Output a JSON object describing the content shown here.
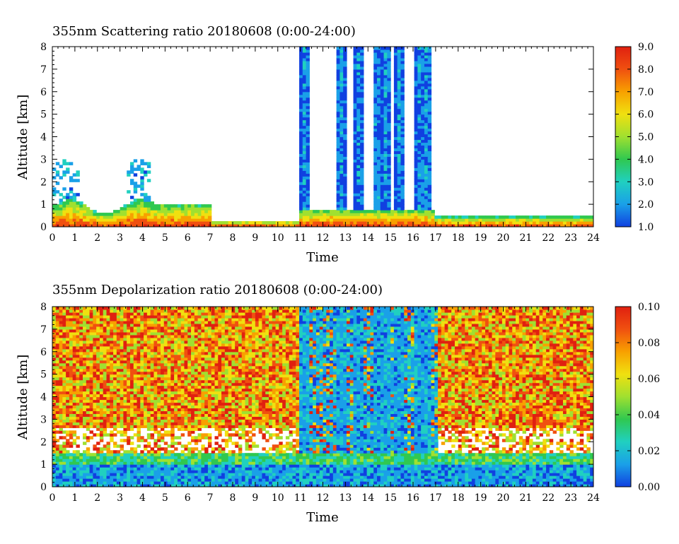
{
  "chart_data": [
    {
      "type": "heatmap",
      "title": "355nm Scattering ratio  20180608 (0:00-24:00)",
      "xlabel": "Time",
      "ylabel": "Altitude [km]",
      "x_ticks": [
        "0",
        "1",
        "2",
        "3",
        "4",
        "5",
        "6",
        "7",
        "8",
        "9",
        "10",
        "11",
        "12",
        "13",
        "14",
        "15",
        "16",
        "17",
        "18",
        "19",
        "20",
        "21",
        "22",
        "23",
        "24"
      ],
      "y_ticks": [
        "0",
        "1",
        "2",
        "3",
        "4",
        "5",
        "6",
        "7",
        "8"
      ],
      "xlim": [
        0,
        24
      ],
      "ylim": [
        0,
        8
      ],
      "colorbar": {
        "range": [
          1.0,
          9.0
        ],
        "ticks": [
          "1.0",
          "2.0",
          "3.0",
          "4.0",
          "5.0",
          "6.0",
          "7.0",
          "8.0",
          "9.0"
        ]
      },
      "colors": [
        "#1040e0",
        "#1aa0e8",
        "#20d0c0",
        "#30c850",
        "#a0e030",
        "#f0e010",
        "#f8a000",
        "#f05010",
        "#e02010"
      ]
    },
    {
      "type": "heatmap",
      "title": "355nm Depolarization ratio  20180608 (0:00-24:00)",
      "xlabel": "Time",
      "ylabel": "Altitude [km]",
      "x_ticks": [
        "0",
        "1",
        "2",
        "3",
        "4",
        "5",
        "6",
        "7",
        "8",
        "9",
        "10",
        "11",
        "12",
        "13",
        "14",
        "15",
        "16",
        "17",
        "18",
        "19",
        "20",
        "21",
        "22",
        "23",
        "24"
      ],
      "y_ticks": [
        "0",
        "1",
        "2",
        "3",
        "4",
        "5",
        "6",
        "7",
        "8"
      ],
      "xlim": [
        0,
        24
      ],
      "ylim": [
        0,
        8
      ],
      "colorbar": {
        "range": [
          0.0,
          0.1
        ],
        "ticks": [
          "0.00",
          "0.02",
          "0.04",
          "0.06",
          "0.08",
          "0.10"
        ]
      },
      "colors": [
        "#1040e0",
        "#1aa0e8",
        "#20d0c0",
        "#30c850",
        "#a0e030",
        "#f0e010",
        "#f8a000",
        "#f05010",
        "#e02010"
      ]
    }
  ]
}
